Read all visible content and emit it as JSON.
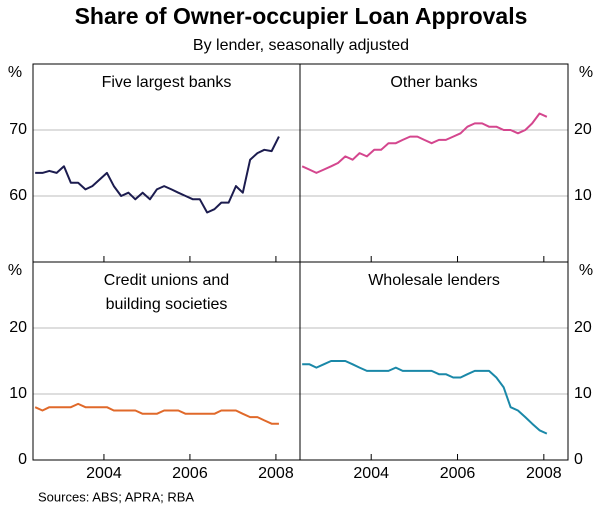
{
  "title": "Share of Owner-occupier Loan Approvals",
  "subtitle": "By lender, seasonally adjusted",
  "source": "Sources: ABS; APRA; RBA",
  "chart_data": [
    {
      "type": "line",
      "title": [
        "Five largest banks"
      ],
      "y_unit": "%",
      "y_axis_side": "left",
      "grid": true,
      "color": "#1c1c4f",
      "x": [
        2002.4,
        2002.57,
        2002.73,
        2002.9,
        2003.07,
        2003.23,
        2003.4,
        2003.57,
        2003.73,
        2003.9,
        2004.07,
        2004.23,
        2004.4,
        2004.57,
        2004.73,
        2004.9,
        2005.07,
        2005.23,
        2005.4,
        2005.57,
        2005.73,
        2005.9,
        2006.07,
        2006.23,
        2006.4,
        2006.57,
        2006.73,
        2006.9,
        2007.07,
        2007.23,
        2007.4,
        2007.57,
        2007.73,
        2007.9,
        2008.07
      ],
      "values": [
        63.5,
        63.5,
        63.8,
        63.5,
        64.5,
        62,
        62,
        61,
        61.5,
        62.5,
        63.5,
        61.5,
        60,
        60.5,
        59.5,
        60.5,
        59.5,
        61,
        61.5,
        61,
        60.5,
        60,
        59.5,
        59.5,
        57.5,
        58,
        59,
        59,
        61.5,
        60.5,
        65.5,
        66.5,
        67,
        66.8,
        69
      ],
      "xlim": [
        2002.35,
        2008.56
      ],
      "xticks": [
        2004,
        2006,
        2008
      ],
      "ylim": [
        50,
        80
      ],
      "yticks": [
        60,
        70
      ]
    },
    {
      "type": "line",
      "title": [
        "Other banks"
      ],
      "y_unit": "%",
      "y_axis_side": "right",
      "grid": true,
      "color": "#d4468e",
      "x": [
        2002.4,
        2002.57,
        2002.73,
        2002.9,
        2003.07,
        2003.23,
        2003.4,
        2003.57,
        2003.73,
        2003.9,
        2004.07,
        2004.23,
        2004.4,
        2004.57,
        2004.73,
        2004.9,
        2005.07,
        2005.23,
        2005.4,
        2005.57,
        2005.73,
        2005.9,
        2006.07,
        2006.23,
        2006.4,
        2006.57,
        2006.73,
        2006.9,
        2007.07,
        2007.23,
        2007.4,
        2007.57,
        2007.73,
        2007.9,
        2008.07
      ],
      "values": [
        14.5,
        14,
        13.5,
        14,
        14.5,
        15,
        16,
        15.5,
        16.5,
        16,
        17,
        17,
        18,
        18,
        18.5,
        19,
        19,
        18.5,
        18,
        18.5,
        18.5,
        19,
        19.5,
        20.5,
        21,
        21,
        20.5,
        20.5,
        20,
        20,
        19.5,
        20,
        21,
        22.5,
        22
      ],
      "xlim": [
        2002.35,
        2008.56
      ],
      "xticks": [
        2004,
        2006,
        2008
      ],
      "ylim": [
        0,
        30
      ],
      "yticks": [
        10,
        20
      ]
    },
    {
      "type": "line",
      "title": [
        "Credit unions and",
        "building societies"
      ],
      "y_unit": "%",
      "y_axis_side": "left",
      "grid": true,
      "color": "#e0692a",
      "x": [
        2002.4,
        2002.57,
        2002.73,
        2002.9,
        2003.07,
        2003.23,
        2003.4,
        2003.57,
        2003.73,
        2003.9,
        2004.07,
        2004.23,
        2004.4,
        2004.57,
        2004.73,
        2004.9,
        2005.07,
        2005.23,
        2005.4,
        2005.57,
        2005.73,
        2005.9,
        2006.07,
        2006.23,
        2006.4,
        2006.57,
        2006.73,
        2006.9,
        2007.07,
        2007.23,
        2007.4,
        2007.57,
        2007.73,
        2007.9,
        2008.07
      ],
      "values": [
        8,
        7.5,
        8,
        8,
        8,
        8,
        8.5,
        8,
        8,
        8,
        8,
        7.5,
        7.5,
        7.5,
        7.5,
        7,
        7,
        7,
        7.5,
        7.5,
        7.5,
        7,
        7,
        7,
        7,
        7,
        7.5,
        7.5,
        7.5,
        7,
        6.5,
        6.5,
        6,
        5.5,
        5.5
      ],
      "xlim": [
        2002.35,
        2008.56
      ],
      "xticks": [
        2004,
        2006,
        2008
      ],
      "ylim": [
        0,
        30
      ],
      "yticks": [
        0,
        10,
        20
      ]
    },
    {
      "type": "line",
      "title": [
        "Wholesale lenders"
      ],
      "y_unit": "%",
      "y_axis_side": "right",
      "grid": true,
      "color": "#1a88a8",
      "x": [
        2002.4,
        2002.57,
        2002.73,
        2002.9,
        2003.07,
        2003.23,
        2003.4,
        2003.57,
        2003.73,
        2003.9,
        2004.07,
        2004.23,
        2004.4,
        2004.57,
        2004.73,
        2004.9,
        2005.07,
        2005.23,
        2005.4,
        2005.57,
        2005.73,
        2005.9,
        2006.07,
        2006.23,
        2006.4,
        2006.57,
        2006.73,
        2006.9,
        2007.07,
        2007.23,
        2007.4,
        2007.57,
        2007.73,
        2007.9,
        2008.07
      ],
      "values": [
        14.5,
        14.5,
        14,
        14.5,
        15,
        15,
        15,
        14.5,
        14,
        13.5,
        13.5,
        13.5,
        13.5,
        14,
        13.5,
        13.5,
        13.5,
        13.5,
        13.5,
        13,
        13,
        12.5,
        12.5,
        13,
        13.5,
        13.5,
        13.5,
        12.5,
        11,
        8,
        7.5,
        6.5,
        5.5,
        4.5,
        4
      ],
      "xlim": [
        2002.35,
        2008.56
      ],
      "xticks": [
        2004,
        2006,
        2008
      ],
      "ylim": [
        0,
        30
      ],
      "yticks": [
        0,
        10,
        20
      ]
    }
  ]
}
